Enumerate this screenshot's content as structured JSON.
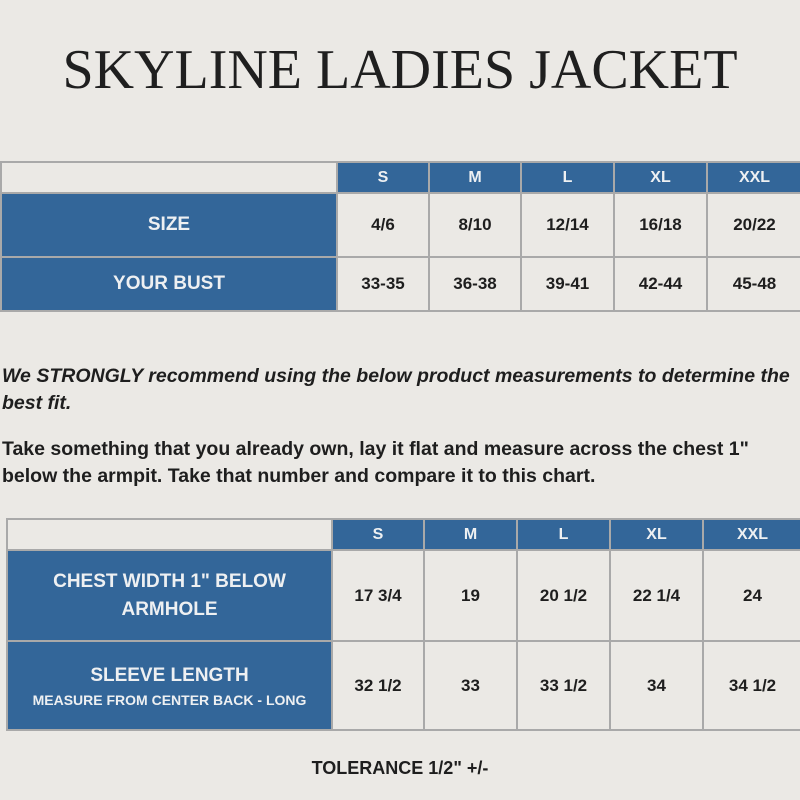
{
  "title": "SKYLINE LADIES JACKET",
  "colors": {
    "accent": "#336699",
    "background": "#ebe9e5"
  },
  "size_table": {
    "columns": [
      "S",
      "M",
      "L",
      "XL",
      "XXL"
    ],
    "rows": [
      {
        "label": "SIZE",
        "values": [
          "4/6",
          "8/10",
          "12/14",
          "16/18",
          "20/22"
        ]
      },
      {
        "label": "YOUR BUST",
        "values": [
          "33-35",
          "36-38",
          "39-41",
          "42-44",
          "45-48"
        ]
      }
    ]
  },
  "recommendation": "We STRONGLY recommend using the below product measurements to determine the best fit.",
  "instructions": "Take something that you already own, lay it flat and measure across the chest 1\" below the armpit.  Take that number and compare it to this chart.",
  "measure_table": {
    "columns": [
      "S",
      "M",
      "L",
      "XL",
      "XXL"
    ],
    "rows": [
      {
        "label": "CHEST WIDTH 1\" BELOW ARMHOLE",
        "sublabel": "",
        "values": [
          "17 3/4",
          "19",
          "20 1/2",
          "22 1/4",
          "24"
        ]
      },
      {
        "label": "SLEEVE LENGTH",
        "sublabel": "MEASURE FROM CENTER BACK - LONG",
        "values": [
          "32 1/2",
          "33",
          "33 1/2",
          "34",
          "34 1/2"
        ]
      }
    ]
  },
  "tolerance": "TOLERANCE 1/2\" +/-"
}
